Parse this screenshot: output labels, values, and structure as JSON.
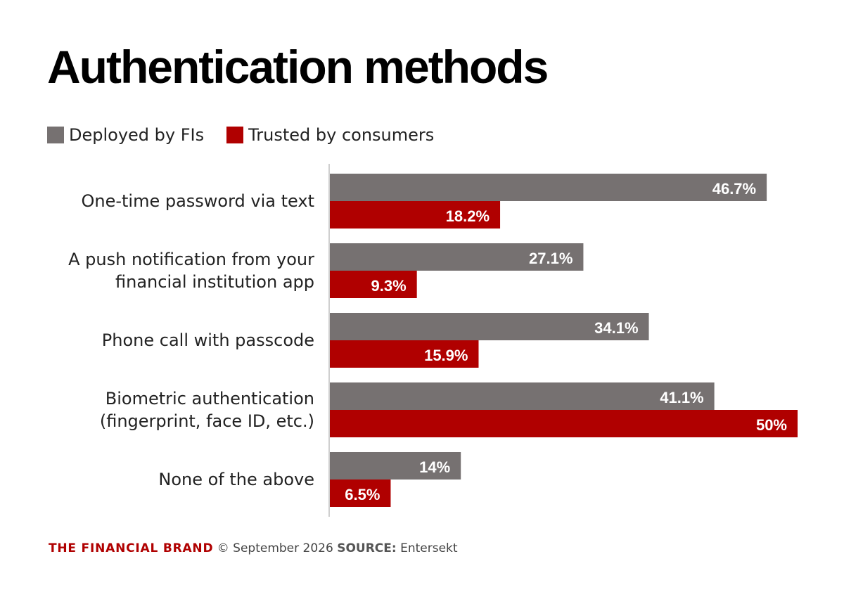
{
  "title": "Authentication methods",
  "legend": [
    {
      "label": "Deployed by FIs",
      "color": "#767171"
    },
    {
      "label": "Trusted by consumers",
      "color": "#b00000"
    }
  ],
  "footer": {
    "brand": "THE FINANCIAL BRAND",
    "copyright": "© September 2026",
    "source_label": "SOURCE:",
    "source": "Entersekt"
  },
  "chart_data": {
    "type": "bar",
    "orientation": "horizontal",
    "categories": [
      [
        "One-time password via text"
      ],
      [
        "A push notification from your",
        "financial institution app"
      ],
      [
        "Phone call with passcode"
      ],
      [
        "Biometric authentication",
        "(fingerprint, face ID, etc.)"
      ],
      [
        "None of the above"
      ]
    ],
    "series": [
      {
        "name": "Deployed by FIs",
        "color": "#767171",
        "values": [
          46.7,
          27.1,
          34.1,
          41.1,
          14
        ],
        "labels": [
          "46.7%",
          "27.1%",
          "34.1%",
          "41.1%",
          "14%"
        ]
      },
      {
        "name": "Trusted by consumers",
        "color": "#b00000",
        "values": [
          18.2,
          9.3,
          15.9,
          50,
          6.5
        ],
        "labels": [
          "18.2%",
          "9.3%",
          "15.9%",
          "50%",
          "6.5%"
        ]
      }
    ],
    "xlim": [
      0,
      50
    ],
    "grid": false,
    "legend_position": "top-left"
  }
}
